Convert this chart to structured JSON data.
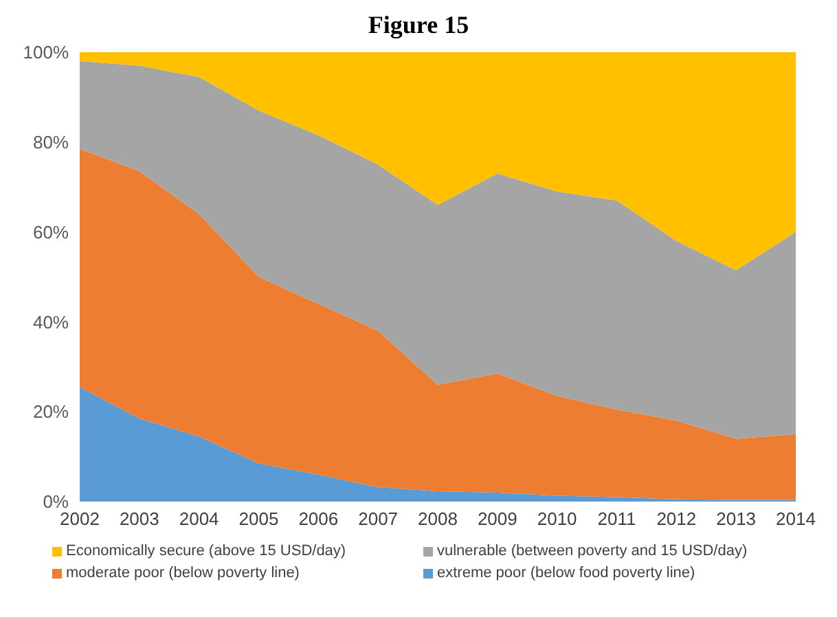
{
  "chart_data": {
    "type": "area",
    "title": "Figure 15",
    "stacked": true,
    "categories": [
      "2002",
      "2003",
      "2004",
      "2005",
      "2006",
      "2007",
      "2008",
      "2009",
      "2010",
      "2011",
      "2012",
      "2013",
      "2014"
    ],
    "series": [
      {
        "name": "extreme poor (below food poverty line)",
        "color": "#5b9bd5",
        "values": [
          25.5,
          18.5,
          14.5,
          8.5,
          6,
          3.2,
          2.3,
          2,
          1.3,
          1,
          0.5,
          0.4,
          0.4
        ]
      },
      {
        "name": "moderate poor (below poverty line)",
        "color": "#ed7d31",
        "values": [
          53,
          55,
          49.5,
          41.5,
          38,
          34.8,
          23.7,
          26.5,
          22.2,
          19.5,
          17.5,
          13.6,
          14.6
        ]
      },
      {
        "name": "vulnerable (between poverty and 15 USD/day)",
        "color": "#a5a5a5",
        "values": [
          19.5,
          23.5,
          30.5,
          37,
          37.5,
          37,
          40,
          44.5,
          45.5,
          46.5,
          40,
          37.5,
          45
        ]
      },
      {
        "name": "Economically secure (above 15 USD/day)",
        "color": "#ffc000",
        "values": [
          2,
          3,
          5.5,
          13,
          18.5,
          25,
          34,
          27,
          31,
          33,
          42,
          48.5,
          40
        ]
      }
    ],
    "ylim": [
      0,
      100
    ],
    "yticks": [
      {
        "value": 0,
        "label": "0%"
      },
      {
        "value": 20,
        "label": "20%"
      },
      {
        "value": 40,
        "label": "40%"
      },
      {
        "value": 60,
        "label": "60%"
      },
      {
        "value": 80,
        "label": "80%"
      },
      {
        "value": 100,
        "label": "100%"
      }
    ],
    "grid": false,
    "legend": "bottom"
  }
}
